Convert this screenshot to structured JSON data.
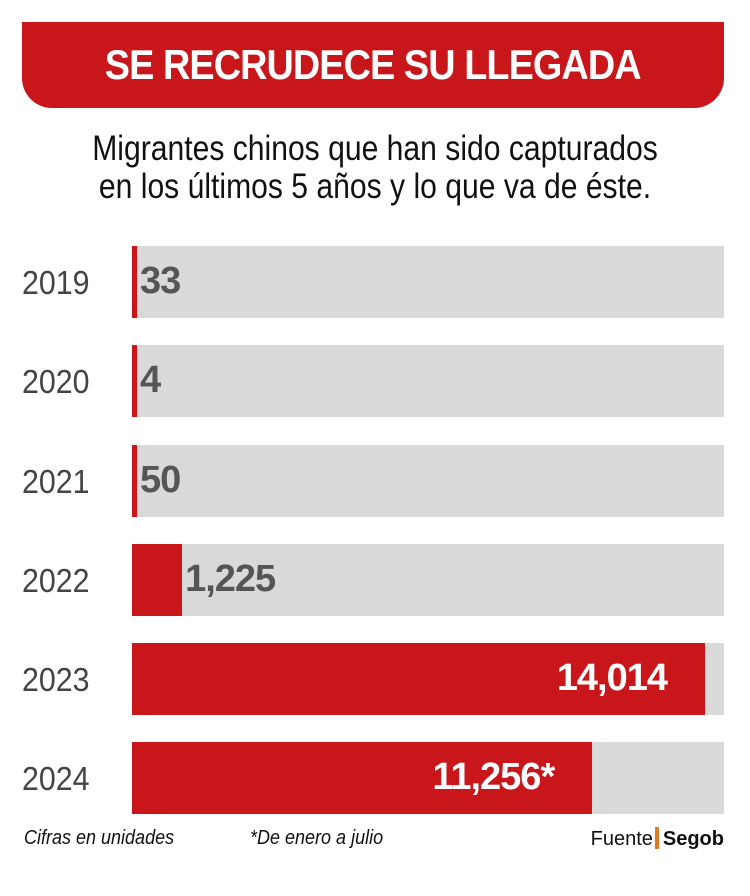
{
  "title": "SE RECRUDECE SU LLEGADA",
  "subtitle": [
    "Migrantes chinos que han sido capturados",
    "en los últimos 5 años y lo que va de éste."
  ],
  "colors": {
    "accent": "#c8161b",
    "track": "#d9d9d9",
    "label": "#555555",
    "source_separator": "#e07a1f"
  },
  "chart_data": {
    "type": "bar",
    "orientation": "horizontal",
    "title": "SE RECRUDECE SU LLEGADA",
    "subtitle": "Migrantes chinos que han sido capturados en los últimos 5 años y lo que va de éste.",
    "categories": [
      "2019",
      "2020",
      "2021",
      "2022",
      "2023",
      "2024"
    ],
    "values": [
      33,
      4,
      50,
      1225,
      14014,
      11256
    ],
    "value_labels": [
      "33",
      "4",
      "50",
      "1,225",
      "14,014",
      "11,256*"
    ],
    "xlim": [
      0,
      15000
    ],
    "grid": false,
    "legend": "none"
  },
  "footer": {
    "units": "Cifras en unidades",
    "note": "*De enero a julio",
    "source_label": "Fuente",
    "source": "Segob"
  }
}
